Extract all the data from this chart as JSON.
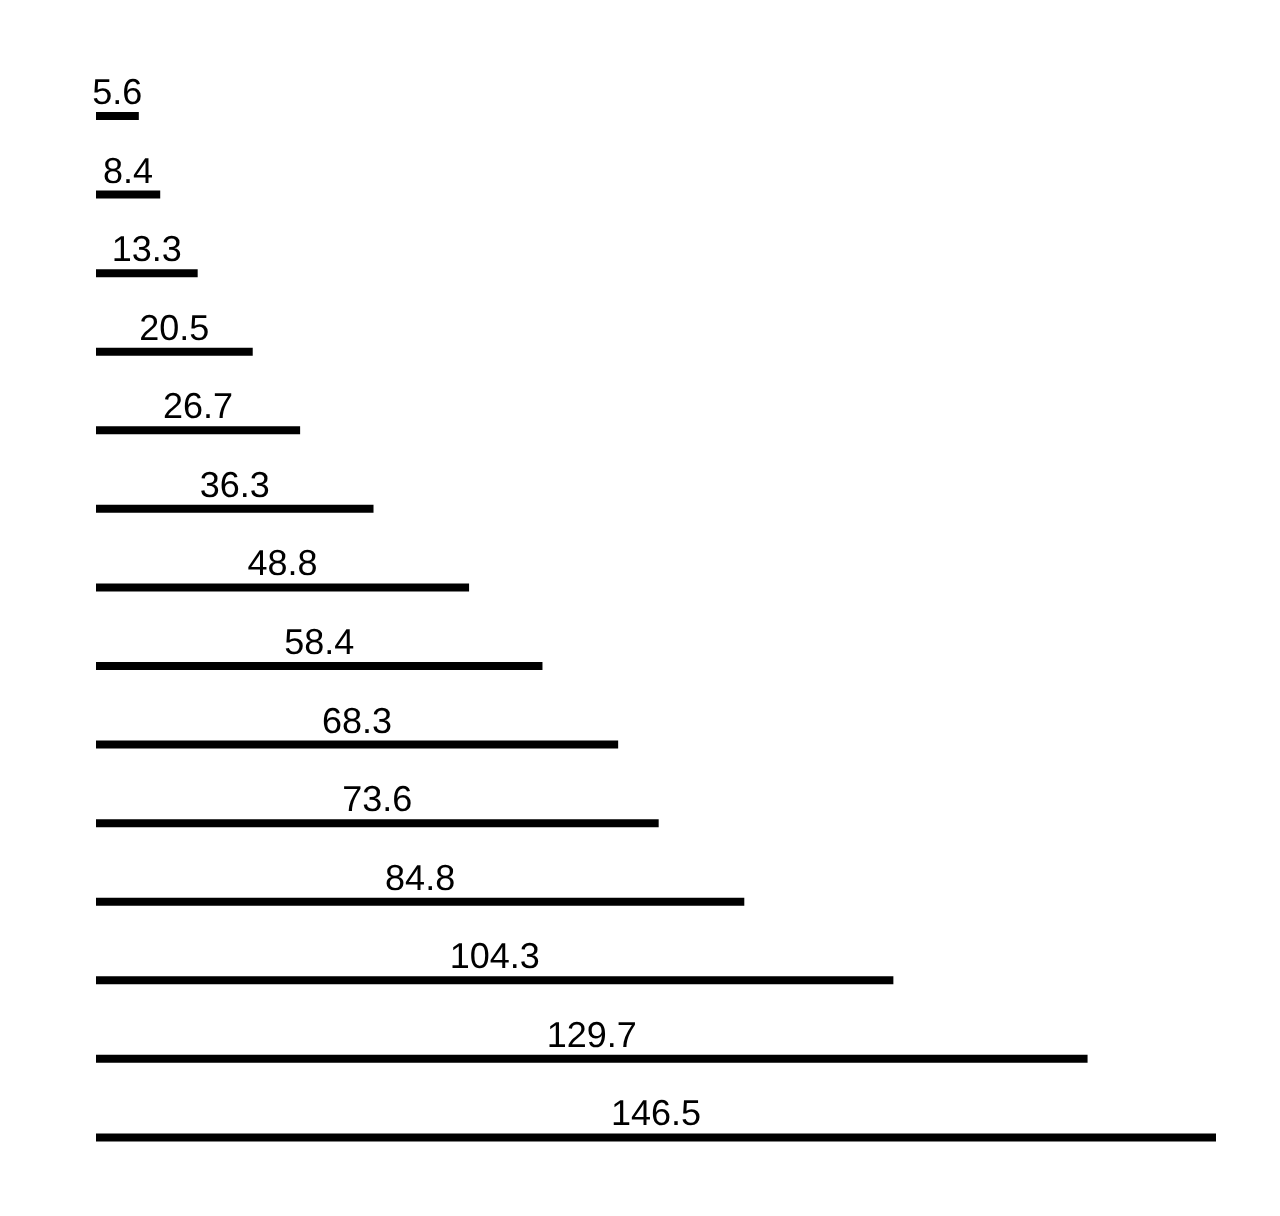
{
  "chart_data": {
    "type": "bar",
    "orientation": "horizontal",
    "categories": [
      null,
      null,
      null,
      null,
      null,
      null,
      null,
      null,
      null,
      null,
      null,
      null,
      null,
      null
    ],
    "values": [
      5.6,
      8.4,
      13.3,
      20.5,
      26.7,
      36.3,
      48.8,
      58.4,
      68.3,
      73.6,
      84.8,
      104.3,
      129.7,
      146.5
    ],
    "color": "#000000",
    "data_labels": true
  }
}
